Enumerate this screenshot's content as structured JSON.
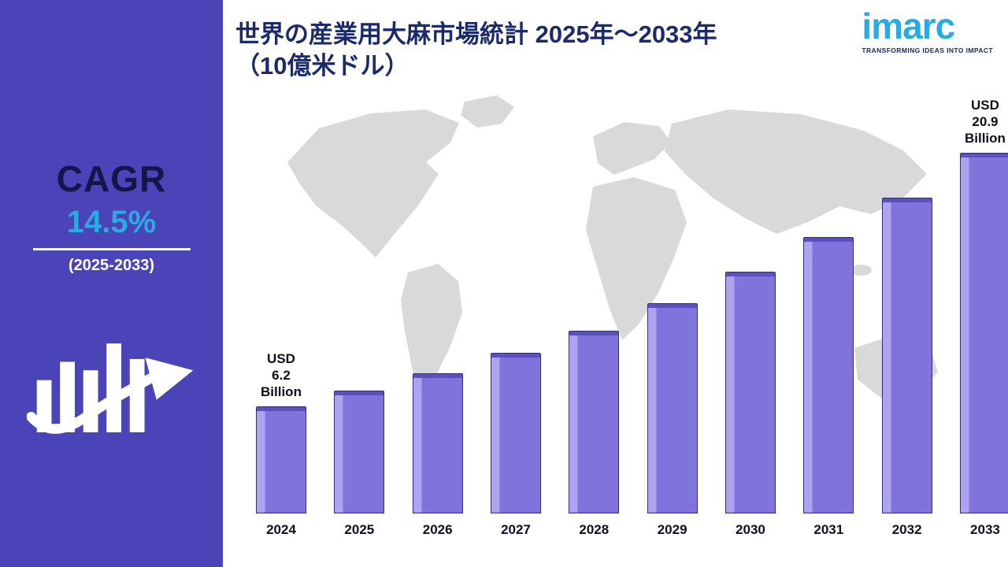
{
  "sidebar": {
    "cagr_label": "CAGR",
    "cagr_value": "14.5%",
    "cagr_period": "(2025-2033)"
  },
  "header": {
    "title_line1": "世界の産業用大麻市場統計 2025年～2033年",
    "title_line2": "（10億米ドル）",
    "logo_text": "imarc",
    "logo_tagline": "TRANSFORMING IDEAS INTO IMPACT"
  },
  "chart_data": {
    "type": "bar",
    "title": "世界の産業用大麻市場統計 2025年～2033年（10億米ドル）",
    "categories": [
      "2024",
      "2025",
      "2026",
      "2027",
      "2028",
      "2029",
      "2030",
      "2031",
      "2032",
      "2033"
    ],
    "values": [
      6.2,
      7.1,
      8.1,
      9.3,
      10.6,
      12.2,
      14.0,
      16.0,
      18.3,
      20.9
    ],
    "unit": "USD Billion",
    "ylim": [
      0,
      22
    ],
    "grid": false,
    "legend": false,
    "cagr": "14.5%",
    "cagr_period": "2025-2033",
    "value_labels": {
      "first_bar": "USD 6.2\nBillion",
      "last_bar": "USD 20.9\nBillion"
    },
    "colors": {
      "bar_fill": "#8173DC",
      "bar_highlight": "#AEA3F0",
      "bar_top": "#5C4FBE",
      "sidebar": "#4A44B8",
      "accent_cyan": "#29ABE2",
      "title_navy": "#1B2A6B",
      "map_gray": "#D9D9D9"
    }
  }
}
